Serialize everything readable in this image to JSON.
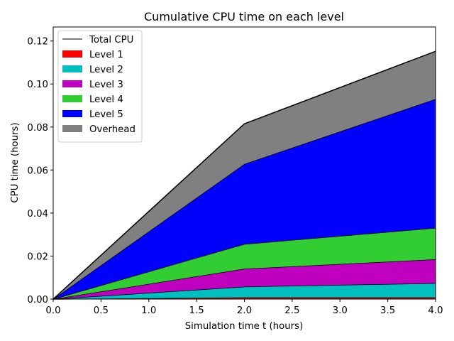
{
  "chart_data": {
    "type": "area",
    "title": "Cumulative CPU time on each level",
    "xlabel": "Simulation time t (hours)",
    "ylabel": "CPU time (hours)",
    "xlim": [
      0.0,
      4.0
    ],
    "ylim": [
      0.0,
      0.1265
    ],
    "xticks": [
      0.0,
      0.5,
      1.0,
      1.5,
      2.0,
      2.5,
      3.0,
      3.5,
      4.0
    ],
    "xtick_labels": [
      "0.0",
      "0.5",
      "1.0",
      "1.5",
      "2.0",
      "2.5",
      "3.0",
      "3.5",
      "4.0"
    ],
    "yticks": [
      0.0,
      0.02,
      0.04,
      0.06,
      0.08,
      0.1,
      0.12
    ],
    "ytick_labels": [
      "0.00",
      "0.02",
      "0.04",
      "0.06",
      "0.08",
      "0.10",
      "0.12"
    ],
    "x": [
      0.0,
      2.0,
      4.0
    ],
    "stacked": true,
    "series": [
      {
        "name": "Level 1",
        "color": "#ff0000",
        "values": [
          0.0,
          0.0008,
          0.0008
        ]
      },
      {
        "name": "Level 2",
        "color": "#00bfbf",
        "values": [
          0.0,
          0.005,
          0.0066
        ]
      },
      {
        "name": "Level 3",
        "color": "#bf00bf",
        "values": [
          0.0,
          0.0083,
          0.0111
        ]
      },
      {
        "name": "Level 4",
        "color": "#32cd32",
        "values": [
          0.0,
          0.0115,
          0.0146
        ]
      },
      {
        "name": "Level 5",
        "color": "#0000ff",
        "values": [
          0.0,
          0.0372,
          0.0599
        ]
      },
      {
        "name": "Overhead",
        "color": "#808080",
        "values": [
          0.0,
          0.0187,
          0.0222
        ]
      }
    ],
    "total_line": {
      "name": "Total CPU",
      "color": "#000000",
      "values": [
        0.0,
        0.0815,
        0.1152
      ]
    },
    "legend_position": "upper-left",
    "grid": false
  }
}
